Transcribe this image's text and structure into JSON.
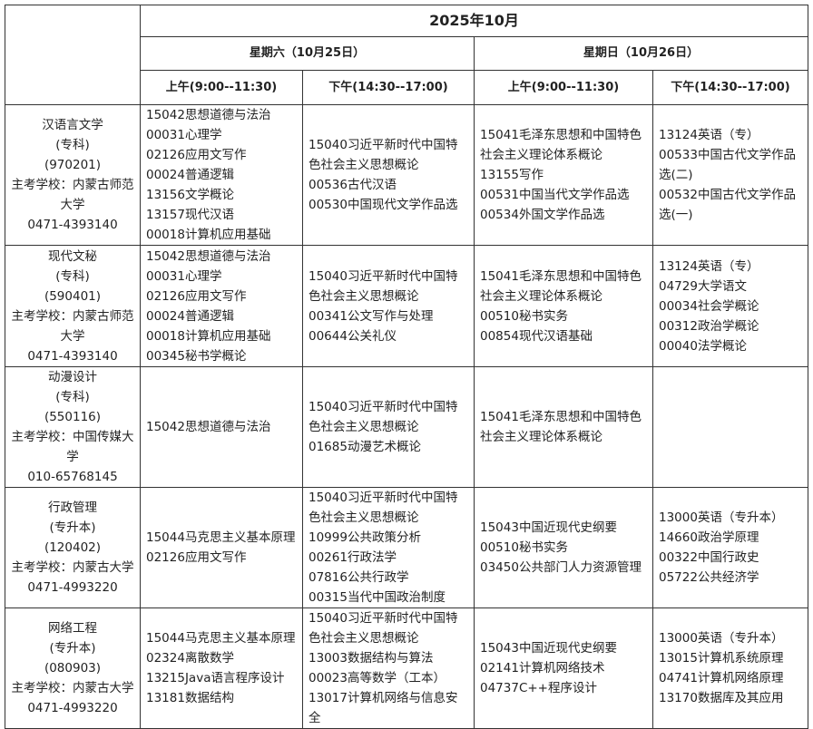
{
  "header": {
    "month": "2025年10月",
    "days": [
      {
        "label": "星期六（10月25日）",
        "slots": [
          "上午(9:00--11:30)",
          "下午(14:30--17:00)"
        ]
      },
      {
        "label": "星期日（10月26日）",
        "slots": [
          "上午(9:00--11:30)",
          "下午(14:30--17:00)"
        ]
      }
    ]
  },
  "rows": [
    {
      "major": [
        "汉语言文学",
        "(专科)",
        "(970201)",
        "主考学校：内蒙古师范大学",
        "0471-4393140"
      ],
      "cells": [
        [
          "15042思想道德与法治",
          "00031心理学",
          "02126应用文写作",
          "00024普通逻辑",
          "13156文学概论",
          "13157现代汉语",
          "00018计算机应用基础"
        ],
        [
          "15040习近平新时代中国特色社会主义思想概论",
          "00536古代汉语",
          "00530中国现代文学作品选"
        ],
        [
          "15041毛泽东思想和中国特色社会主义理论体系概论",
          "13155写作",
          "00531中国当代文学作品选",
          "00534外国文学作品选"
        ],
        [
          "13124英语（专）",
          "00533中国古代文学作品选(二)",
          "00532中国古代文学作品选(一)"
        ]
      ]
    },
    {
      "major": [
        "现代文秘",
        "(专科)",
        "(590401)",
        "主考学校：内蒙古师范大学",
        "0471-4393140"
      ],
      "cells": [
        [
          "15042思想道德与法治",
          "00031心理学",
          "02126应用文写作",
          "00024普通逻辑",
          "00018计算机应用基础",
          "00345秘书学概论"
        ],
        [
          "15040习近平新时代中国特色社会主义思想概论",
          "00341公文写作与处理",
          "00644公关礼仪"
        ],
        [
          "15041毛泽东思想和中国特色社会主义理论体系概论",
          "00510秘书实务",
          "00854现代汉语基础"
        ],
        [
          "13124英语（专）",
          "04729大学语文",
          "00034社会学概论",
          "00312政治学概论",
          "00040法学概论"
        ]
      ]
    },
    {
      "major": [
        "动漫设计",
        "(专科)",
        "(550116)",
        "主考学校：中国传媒大学",
        "010-65768145"
      ],
      "cells": [
        [
          "15042思想道德与法治"
        ],
        [
          "15040习近平新时代中国特色社会主义思想概论",
          "01685动漫艺术概论"
        ],
        [
          "15041毛泽东思想和中国特色社会主义理论体系概论"
        ],
        []
      ]
    },
    {
      "major": [
        "行政管理",
        "(专升本)",
        "(120402)",
        "主考学校：内蒙古大学",
        "0471-4993220"
      ],
      "cells": [
        [
          "15044马克思主义基本原理",
          "02126应用文写作"
        ],
        [
          "15040习近平新时代中国特色社会主义思想概论",
          "10999公共政策分析",
          "00261行政法学",
          "07816公共行政学",
          "00315当代中国政治制度"
        ],
        [
          "15043中国近现代史纲要",
          "00510秘书实务",
          "03450公共部门人力资源管理"
        ],
        [
          "13000英语（专升本）",
          "14660政治学原理",
          "00322中国行政史",
          "05722公共经济学"
        ]
      ]
    },
    {
      "major": [
        "网络工程",
        "(专升本)",
        "(080903)",
        "主考学校：内蒙古大学",
        "0471-4993220"
      ],
      "cells": [
        [
          "15044马克思主义基本原理",
          "02324离散数学",
          "13215Java语言程序设计",
          "13181数据结构"
        ],
        [
          "15040习近平新时代中国特色社会主义思想概论",
          "13003数据结构与算法",
          "00023高等数学（工本）",
          "13017计算机网络与信息安全"
        ],
        [
          "15043中国近现代史纲要",
          "02141计算机网络技术",
          "04737C++程序设计"
        ],
        [
          "13000英语（专升本）",
          "13015计算机系统原理",
          "04741计算机网络原理",
          "13170数据库及其应用"
        ]
      ]
    }
  ]
}
